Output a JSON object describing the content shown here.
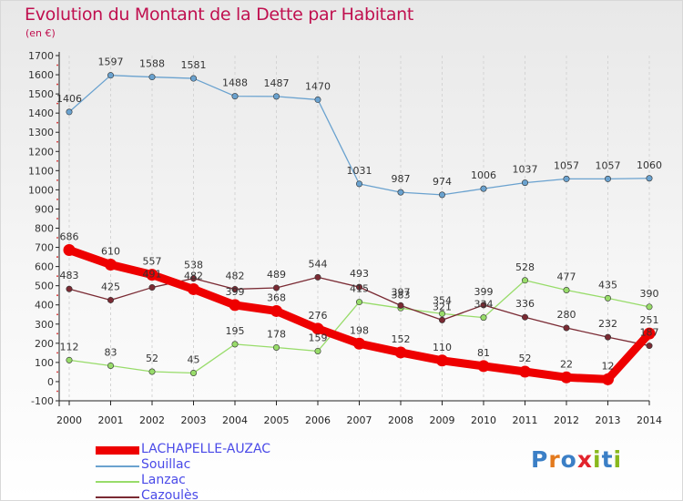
{
  "title": "Evolution du Montant de la Dette par Habitant",
  "subtitle": "(en €)",
  "brand": {
    "text": "Proxiti",
    "letter_colors": [
      "#3b7fc6",
      "#e37a1d",
      "#3b7fc6",
      "#e2232c",
      "#89b81e",
      "#3b7fc6",
      "#89b81e"
    ]
  },
  "chart_data": {
    "type": "line",
    "title": "Evolution du Montant de la Dette par Habitant",
    "subtitle": "(en €)",
    "xlabel": "",
    "ylabel": "",
    "x": [
      "2000",
      "2001",
      "2002",
      "2003",
      "2004",
      "2005",
      "2006",
      "2007",
      "2008",
      "2009",
      "2010",
      "2011",
      "2012",
      "2013",
      "2014"
    ],
    "ylim": [
      -100,
      1700
    ],
    "yticks": [
      "-100",
      "0",
      "100",
      "200",
      "300",
      "400",
      "500",
      "600",
      "700",
      "800",
      "900",
      "1000",
      "1100",
      "1200",
      "1300",
      "1400",
      "1500",
      "1600",
      "1700"
    ],
    "grid": "vertical dashed",
    "legend_position": "bottom-left",
    "series": [
      {
        "name": "LACHAPELLE-AUZAC",
        "color": "#ee0000",
        "values": [
          686,
          610,
          557,
          482,
          399,
          368,
          276,
          198,
          152,
          110,
          81,
          52,
          22,
          12,
          251
        ],
        "labels": [
          "686",
          "610",
          "557",
          "482",
          "399",
          "368",
          "276",
          "198",
          "152",
          "110",
          "81",
          "52",
          "22",
          "12",
          "251"
        ]
      },
      {
        "name": "Souillac",
        "color": "#6aa2cf",
        "values": [
          1406,
          1597,
          1588,
          1581,
          1488,
          1487,
          1470,
          1031,
          987,
          974,
          1006,
          1037,
          1057,
          1057,
          1060
        ],
        "labels": [
          "1406",
          "1597",
          "1588",
          "1581",
          "1488",
          "1487",
          "1470",
          "1031",
          "987",
          "974",
          "1006",
          "1037",
          "1057",
          "1057",
          "1060"
        ]
      },
      {
        "name": "Lanzac",
        "color": "#98dc6a",
        "values": [
          112,
          83,
          52,
          45,
          195,
          178,
          159,
          415,
          383,
          354,
          334,
          528,
          477,
          435,
          390
        ],
        "labels": [
          "112",
          "83",
          "52",
          "45",
          "195",
          "178",
          "159",
          "415",
          "383",
          "354",
          "334",
          "528",
          "477",
          "435",
          "390"
        ]
      },
      {
        "name": "Cazoulès",
        "color": "#7a2a33",
        "values": [
          483,
          425,
          491,
          538,
          482,
          489,
          544,
          493,
          397,
          321,
          399,
          336,
          280,
          232,
          187
        ],
        "labels": [
          "483",
          "425",
          "491",
          "538",
          "482",
          "489",
          "544",
          "493",
          "397",
          "321",
          "399",
          "336",
          "280",
          "232",
          "187"
        ]
      }
    ]
  }
}
